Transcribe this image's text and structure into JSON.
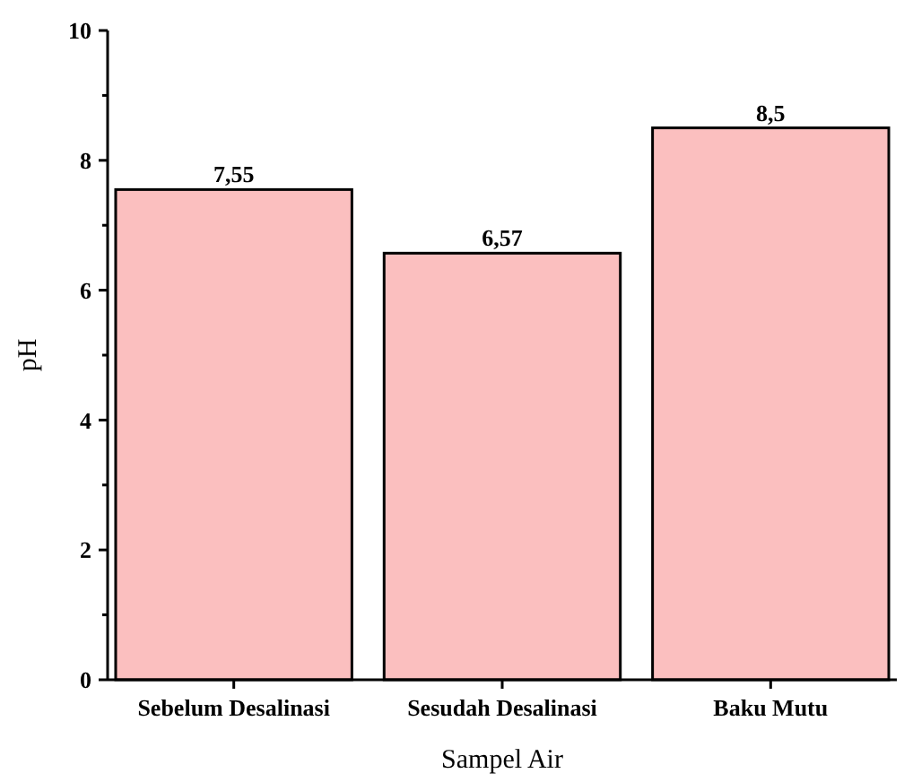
{
  "chart_data": {
    "type": "bar",
    "xlabel": "Sampel Air",
    "ylabel": "pH",
    "categories": [
      "Sebelum Desalinasi",
      "Sesudah Desalinasi",
      "Baku Mutu"
    ],
    "values": [
      7.55,
      6.57,
      8.5
    ],
    "value_labels": [
      "7,55",
      "6,57",
      "8,5"
    ],
    "color": "#fbbfbf",
    "ylim": [
      0,
      10
    ],
    "yticks": [
      0,
      {
        "value": 1,
        "label": null
      },
      2,
      {
        "value": 3,
        "label": null
      },
      4,
      {
        "value": 5,
        "label": null
      },
      6,
      {
        "value": 7,
        "label": null
      },
      8,
      {
        "value": 9,
        "label": null
      },
      10
    ],
    "grid": false
  }
}
